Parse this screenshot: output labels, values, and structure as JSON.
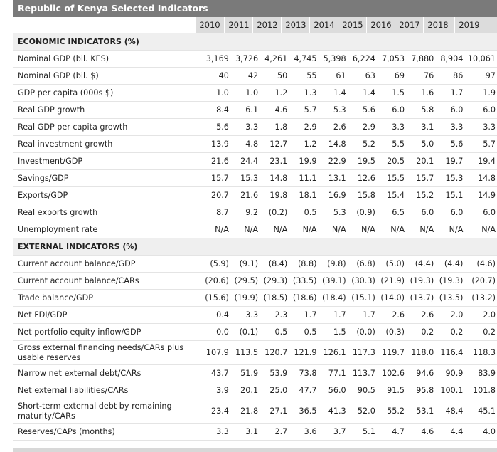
{
  "title": "Republic of Kenya Selected Indicators",
  "years": [
    "2010",
    "2011",
    "2012",
    "2013",
    "2014",
    "2015",
    "2016",
    "2017",
    "2018",
    "2019"
  ],
  "sections": [
    {
      "heading": "ECONOMIC INDICATORS (%)",
      "rows": [
        {
          "label": "Nominal GDP (bil. KES)",
          "values": [
            "3,169",
            "3,726",
            "4,261",
            "4,745",
            "5,398",
            "6,224",
            "7,053",
            "7,880",
            "8,904",
            "10,061"
          ]
        },
        {
          "label": "Nominal GDP (bil. $)",
          "values": [
            "40",
            "42",
            "50",
            "55",
            "61",
            "63",
            "69",
            "76",
            "86",
            "97"
          ]
        },
        {
          "label": "GDP per capita (000s $)",
          "values": [
            "1.0",
            "1.0",
            "1.2",
            "1.3",
            "1.4",
            "1.4",
            "1.5",
            "1.6",
            "1.7",
            "1.9"
          ]
        },
        {
          "label": "Real GDP growth",
          "values": [
            "8.4",
            "6.1",
            "4.6",
            "5.7",
            "5.3",
            "5.6",
            "6.0",
            "5.8",
            "6.0",
            "6.0"
          ]
        },
        {
          "label": "Real GDP per capita growth",
          "values": [
            "5.6",
            "3.3",
            "1.8",
            "2.9",
            "2.6",
            "2.9",
            "3.3",
            "3.1",
            "3.3",
            "3.3"
          ]
        },
        {
          "label": "Real investment growth",
          "values": [
            "13.9",
            "4.8",
            "12.7",
            "1.2",
            "14.8",
            "5.2",
            "5.5",
            "5.0",
            "5.6",
            "5.7"
          ]
        },
        {
          "label": "Investment/GDP",
          "values": [
            "21.6",
            "24.4",
            "23.1",
            "19.9",
            "22.9",
            "19.5",
            "20.5",
            "20.1",
            "19.7",
            "19.4"
          ]
        },
        {
          "label": "Savings/GDP",
          "values": [
            "15.7",
            "15.3",
            "14.8",
            "11.1",
            "13.1",
            "12.6",
            "15.5",
            "15.7",
            "15.3",
            "14.8"
          ]
        },
        {
          "label": "Exports/GDP",
          "values": [
            "20.7",
            "21.6",
            "19.8",
            "18.1",
            "16.9",
            "15.8",
            "15.4",
            "15.2",
            "15.1",
            "14.9"
          ]
        },
        {
          "label": "Real exports growth",
          "values": [
            "8.7",
            "9.2",
            "(0.2)",
            "0.5",
            "5.3",
            "(0.9)",
            "6.5",
            "6.0",
            "6.0",
            "6.0"
          ]
        },
        {
          "label": "Unemployment rate",
          "values": [
            "N/A",
            "N/A",
            "N/A",
            "N/A",
            "N/A",
            "N/A",
            "N/A",
            "N/A",
            "N/A",
            "N/A"
          ]
        }
      ]
    },
    {
      "heading": "EXTERNAL INDICATORS (%)",
      "rows": [
        {
          "label": "Current account balance/GDP",
          "values": [
            "(5.9)",
            "(9.1)",
            "(8.4)",
            "(8.8)",
            "(9.8)",
            "(6.8)",
            "(5.0)",
            "(4.4)",
            "(4.4)",
            "(4.6)"
          ]
        },
        {
          "label": "Current account balance/CARs",
          "values": [
            "(20.6)",
            "(29.5)",
            "(29.3)",
            "(33.5)",
            "(39.1)",
            "(30.3)",
            "(21.9)",
            "(19.3)",
            "(19.3)",
            "(20.7)"
          ]
        },
        {
          "label": "Trade balance/GDP",
          "values": [
            "(15.6)",
            "(19.9)",
            "(18.5)",
            "(18.6)",
            "(18.4)",
            "(15.1)",
            "(14.0)",
            "(13.7)",
            "(13.5)",
            "(13.2)"
          ]
        },
        {
          "label": "Net FDI/GDP",
          "values": [
            "0.4",
            "3.3",
            "2.3",
            "1.7",
            "1.7",
            "1.7",
            "2.6",
            "2.6",
            "2.0",
            "2.0"
          ]
        },
        {
          "label": "Net portfolio equity inflow/GDP",
          "values": [
            "0.0",
            "(0.1)",
            "0.5",
            "0.5",
            "1.5",
            "(0.0)",
            "(0.3)",
            "0.2",
            "0.2",
            "0.2"
          ]
        },
        {
          "label": "Gross external financing needs/CARs plus usable reserves",
          "values": [
            "107.9",
            "113.5",
            "120.7",
            "121.9",
            "126.1",
            "117.3",
            "119.7",
            "118.0",
            "116.4",
            "118.3"
          ],
          "tall": true
        },
        {
          "label": "Narrow net external debt/CARs",
          "values": [
            "43.7",
            "51.9",
            "53.9",
            "73.8",
            "77.1",
            "113.7",
            "102.6",
            "94.6",
            "90.9",
            "83.9"
          ]
        },
        {
          "label": "Net external liabilities/CARs",
          "values": [
            "3.9",
            "20.1",
            "25.0",
            "47.7",
            "56.0",
            "90.5",
            "91.5",
            "95.8",
            "100.1",
            "101.8"
          ]
        },
        {
          "label": "Short-term external debt by remaining maturity/CARs",
          "values": [
            "23.4",
            "21.8",
            "27.1",
            "36.5",
            "41.3",
            "52.0",
            "55.2",
            "53.1",
            "48.4",
            "45.1"
          ],
          "tall": true
        },
        {
          "label": "Reserves/CAPs (months)",
          "values": [
            "3.3",
            "3.1",
            "2.7",
            "3.6",
            "3.7",
            "5.1",
            "4.7",
            "4.6",
            "4.4",
            "4.0"
          ]
        }
      ]
    }
  ]
}
